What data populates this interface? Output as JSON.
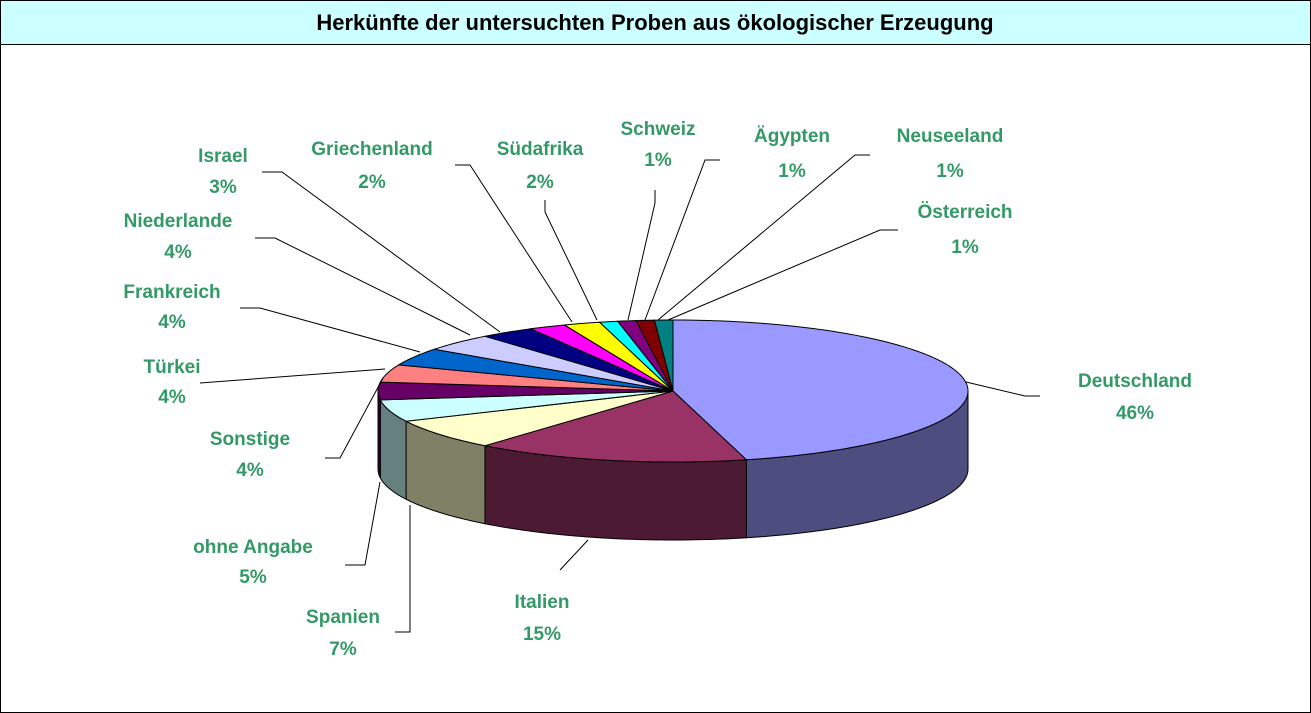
{
  "chart_data": {
    "type": "pie3d",
    "title": "Herkünfte der untersuchten Proben aus ökologischer Erzeugung",
    "categories": [
      "Deutschland",
      "Italien",
      "Spanien",
      "ohne Angabe",
      "Sonstige",
      "Türkei",
      "Frankreich",
      "Niederlande",
      "Israel",
      "Griechenland",
      "Südafrika",
      "Schweiz",
      "Ägypten",
      "Neuseeland",
      "Österreich"
    ],
    "values": [
      46,
      15,
      7,
      5,
      4,
      4,
      4,
      4,
      3,
      2,
      2,
      1,
      1,
      1,
      1
    ],
    "value_labels": [
      "46%",
      "15%",
      "7%",
      "5%",
      "4%",
      "4%",
      "4%",
      "4%",
      "3%",
      "2%",
      "2%",
      "1%",
      "1%",
      "1%",
      "1%"
    ],
    "colors": [
      "#9999ff",
      "#993366",
      "#ffffcc",
      "#ccffff",
      "#660066",
      "#ff8080",
      "#0066cc",
      "#ccccff",
      "#000080",
      "#ff00ff",
      "#ffff00",
      "#00ffff",
      "#800080",
      "#800000",
      "#008080"
    ]
  }
}
